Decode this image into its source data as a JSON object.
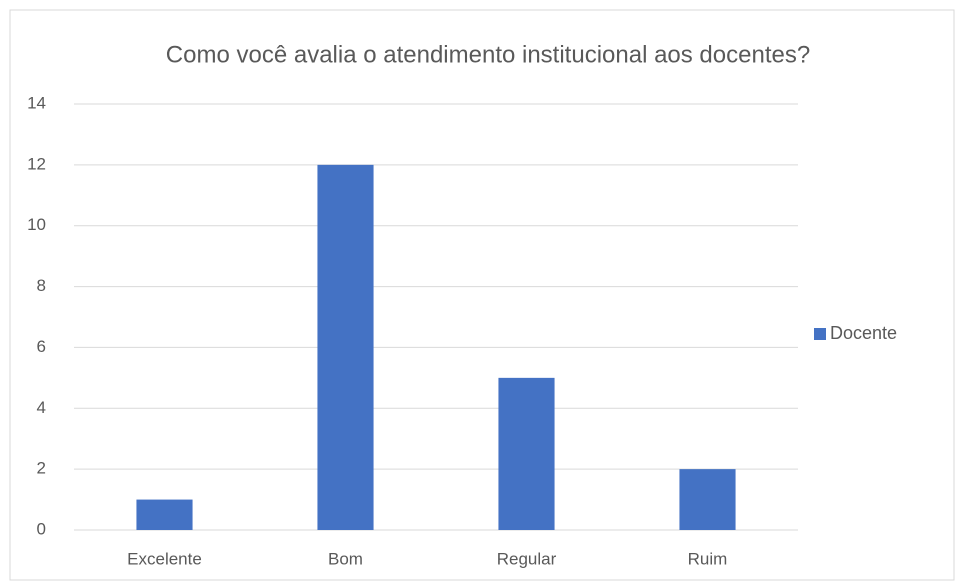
{
  "chart_data": {
    "type": "bar",
    "title": "Como você avalia o atendimento institucional aos docentes?",
    "categories": [
      "Excelente",
      "Bom",
      "Regular",
      "Ruim"
    ],
    "series": [
      {
        "name": "Docente",
        "color": "#4472c4",
        "values": [
          1,
          12,
          5,
          2
        ]
      }
    ],
    "ylim": [
      0,
      14
    ],
    "yticks": [
      0,
      2,
      4,
      6,
      8,
      10,
      12,
      14
    ],
    "grid": true,
    "legend": "right"
  }
}
